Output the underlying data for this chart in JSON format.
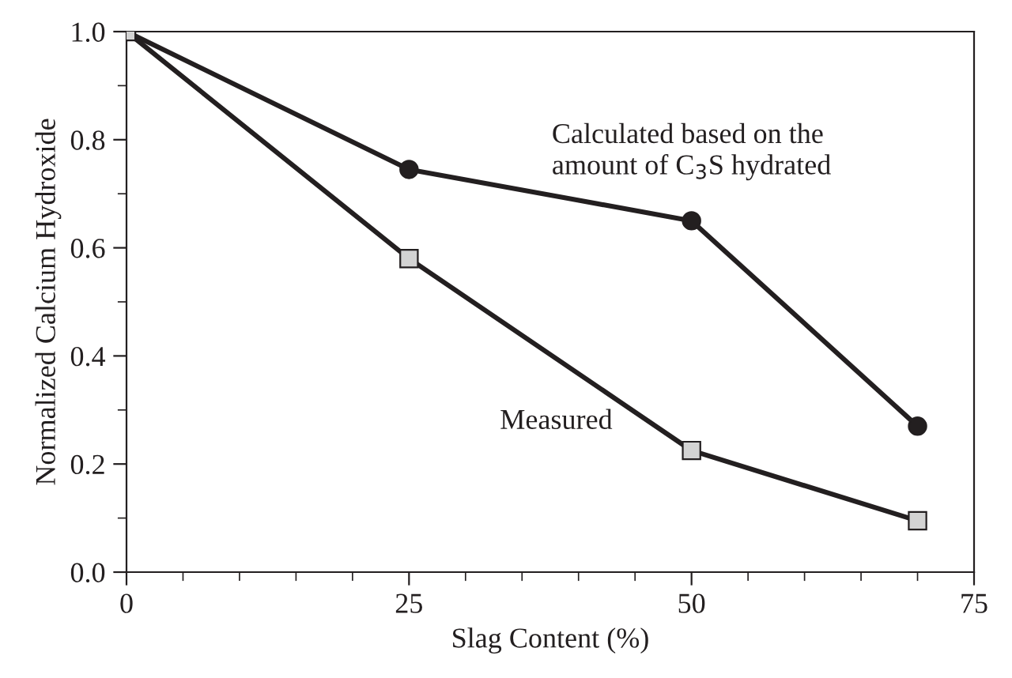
{
  "chart_data": {
    "type": "line",
    "xlabel": "Slag Content (%)",
    "ylabel": "Normalized Calcium Hydroxide",
    "x": [
      0,
      25,
      50,
      70
    ],
    "series": [
      {
        "name": "Calculated based on the\namount of C$_{3}$S hydrated",
        "color": "#231f20",
        "marker": "circle",
        "values": [
          1.0,
          0.745,
          0.65,
          0.27
        ]
      },
      {
        "name": "Measured",
        "color": "#231f20",
        "marker": "square",
        "values": [
          1.0,
          0.58,
          0.225,
          0.095
        ]
      }
    ],
    "xlim": [
      0,
      75
    ],
    "xticks": [
      0,
      25,
      50,
      75
    ],
    "ylim": [
      0,
      1.0
    ],
    "yticks": [
      {
        "value": 0,
        "label": "0.0"
      },
      0.2,
      0.4,
      0.6,
      0.8,
      {
        "value": 1.0,
        "label": "1.0"
      }
    ],
    "grid": false,
    "legend": false,
    "line_style": "solid"
  }
}
